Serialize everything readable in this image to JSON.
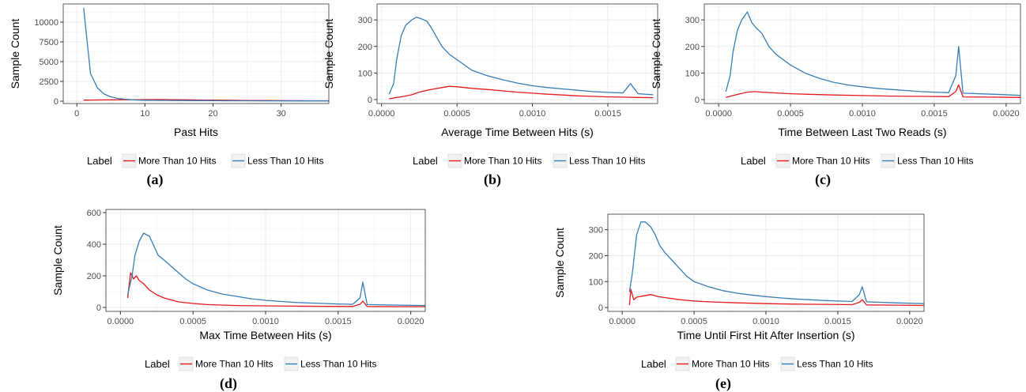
{
  "colors": {
    "red": "#e41a1c",
    "blue": "#377eb8",
    "grid": "#ebebeb",
    "panel_border": "#333333"
  },
  "legend": {
    "title": "Label",
    "items": [
      "More Than 10 Hits",
      "Less Than 10 Hits"
    ]
  },
  "chart_data": [
    {
      "type": "line",
      "caption": "(a)",
      "xlabel": "Past Hits",
      "ylabel": "Sample Count",
      "xlim": [
        -2,
        37
      ],
      "ylim": [
        -300,
        12300
      ],
      "xticks": [
        0,
        10,
        20,
        30
      ],
      "xtick_labels": [
        "0",
        "10",
        "20",
        "30"
      ],
      "yticks": [
        0,
        2500,
        5000,
        7500,
        10000
      ],
      "ytick_labels": [
        "0",
        "2500",
        "5000",
        "7500",
        "10000"
      ],
      "series": [
        {
          "name": "More Than 10 Hits",
          "x": [
            1,
            2,
            3,
            4,
            5,
            6,
            7,
            8,
            9,
            10,
            11,
            12,
            13,
            14,
            15,
            16,
            17,
            18,
            19,
            20,
            22,
            24,
            26,
            28,
            30,
            32,
            34,
            37
          ],
          "y": [
            130,
            140,
            150,
            160,
            170,
            175,
            180,
            185,
            190,
            195,
            200,
            210,
            200,
            190,
            180,
            170,
            160,
            150,
            140,
            130,
            115,
            100,
            90,
            80,
            70,
            60,
            50,
            45
          ]
        },
        {
          "name": "Less Than 10 Hits",
          "x": [
            1,
            2,
            3,
            4,
            5,
            6,
            7,
            8,
            9,
            10,
            11,
            12,
            13,
            14,
            15,
            16,
            17,
            18,
            19,
            20,
            22,
            24,
            26,
            28,
            30,
            32,
            34,
            37
          ],
          "y": [
            11800,
            3500,
            1700,
            900,
            550,
            350,
            250,
            180,
            140,
            120,
            110,
            100,
            95,
            90,
            85,
            80,
            75,
            70,
            65,
            60,
            55,
            50,
            45,
            40,
            38,
            35,
            32,
            30
          ]
        }
      ]
    },
    {
      "type": "line",
      "caption": "(b)",
      "xlabel": "Average Time Between Hits (s)",
      "ylabel": "Sample Count",
      "xlim": [
        -3e-05,
        0.00183
      ],
      "ylim": [
        -15,
        360
      ],
      "xticks": [
        0,
        0.0005,
        0.001,
        0.0015
      ],
      "xtick_labels": [
        "0.0000",
        "0.0005",
        "0.0010",
        "0.0015"
      ],
      "yticks": [
        0,
        100,
        200,
        300
      ],
      "ytick_labels": [
        "0",
        "100",
        "200",
        "300"
      ],
      "series": [
        {
          "name": "More Than 10 Hits",
          "x": [
            5e-05,
            0.0001,
            0.00015,
            0.0002,
            0.00025,
            0.0003,
            0.00035,
            0.0004,
            0.00045,
            0.0005,
            0.00055,
            0.0006,
            0.0007,
            0.0008,
            0.0009,
            0.001,
            0.0011,
            0.0012,
            0.0013,
            0.0014,
            0.0015,
            0.0016,
            0.0017,
            0.0018
          ],
          "y": [
            3,
            8,
            12,
            18,
            28,
            35,
            40,
            45,
            50,
            48,
            45,
            42,
            38,
            33,
            28,
            24,
            20,
            17,
            14,
            12,
            10,
            9,
            8,
            7
          ]
        },
        {
          "name": "Less Than 10 Hits",
          "x": [
            5e-05,
            8e-05,
            0.0001,
            0.00013,
            0.00016,
            0.0002,
            0.00023,
            0.00026,
            0.0003,
            0.00033,
            0.00036,
            0.0004,
            0.00045,
            0.0005,
            0.00055,
            0.0006,
            0.0007,
            0.0008,
            0.0009,
            0.001,
            0.0011,
            0.0012,
            0.0013,
            0.0014,
            0.0015,
            0.0016,
            0.00165,
            0.0017,
            0.0018
          ],
          "y": [
            20,
            60,
            150,
            240,
            280,
            300,
            310,
            305,
            295,
            270,
            240,
            200,
            170,
            150,
            130,
            110,
            90,
            75,
            62,
            52,
            45,
            40,
            35,
            30,
            27,
            25,
            60,
            22,
            18
          ]
        }
      ]
    },
    {
      "type": "line",
      "caption": "(c)",
      "xlabel": "Time Between Last Two Reads (s)",
      "ylabel": "Sample Count",
      "xlim": [
        -0.0001,
        0.0021
      ],
      "ylim": [
        -15,
        360
      ],
      "xticks": [
        0,
        0.0005,
        0.001,
        0.0015,
        0.002
      ],
      "xtick_labels": [
        "0.0000",
        "0.0005",
        "0.0010",
        "0.0015",
        "0.0020"
      ],
      "yticks": [
        0,
        100,
        200,
        300
      ],
      "ytick_labels": [
        "0",
        "100",
        "200",
        "300"
      ],
      "series": [
        {
          "name": "More Than 10 Hits",
          "x": [
            5e-05,
            0.0001,
            0.00015,
            0.0002,
            0.00025,
            0.0003,
            0.0004,
            0.0005,
            0.0006,
            0.0008,
            0.001,
            0.0012,
            0.0014,
            0.0016,
            0.00165,
            0.00167,
            0.0017,
            0.0019,
            0.0021
          ],
          "y": [
            8,
            15,
            22,
            28,
            30,
            28,
            25,
            22,
            20,
            17,
            15,
            13,
            12,
            11,
            30,
            55,
            10,
            9,
            8
          ]
        },
        {
          "name": "Less Than 10 Hits",
          "x": [
            5e-05,
            8e-05,
            0.0001,
            0.00013,
            0.00016,
            0.0002,
            0.00023,
            0.00026,
            0.0003,
            0.00035,
            0.0004,
            0.00045,
            0.0005,
            0.0006,
            0.0007,
            0.0008,
            0.0009,
            0.001,
            0.0011,
            0.0012,
            0.0013,
            0.0014,
            0.0015,
            0.0016,
            0.00165,
            0.00167,
            0.0017,
            0.0019,
            0.0021
          ],
          "y": [
            30,
            90,
            180,
            260,
            300,
            330,
            290,
            270,
            250,
            200,
            170,
            150,
            130,
            100,
            80,
            65,
            55,
            48,
            42,
            38,
            34,
            30,
            28,
            26,
            90,
            200,
            24,
            20,
            16
          ]
        }
      ]
    },
    {
      "type": "line",
      "caption": "(d)",
      "xlabel": "Max Time Between Hits (s)",
      "ylabel": "Sample Count",
      "xlim": [
        -0.0001,
        0.0021
      ],
      "ylim": [
        -25,
        620
      ],
      "xticks": [
        0,
        0.0005,
        0.001,
        0.0015,
        0.002
      ],
      "xtick_labels": [
        "0.0000",
        "0.0005",
        "0.0010",
        "0.0015",
        "0.0020"
      ],
      "yticks": [
        0,
        200,
        400,
        600
      ],
      "ytick_labels": [
        "0",
        "200",
        "400",
        "600"
      ],
      "series": [
        {
          "name": "More Than 10 Hits",
          "x": [
            5e-05,
            7e-05,
            9e-05,
            0.00011,
            0.00013,
            0.00016,
            0.0002,
            0.00025,
            0.0003,
            0.0004,
            0.0005,
            0.0006,
            0.0008,
            0.001,
            0.0012,
            0.0014,
            0.0016,
            0.00165,
            0.00167,
            0.0017,
            0.0019,
            0.0021
          ],
          "y": [
            60,
            220,
            180,
            200,
            170,
            150,
            110,
            80,
            60,
            35,
            25,
            18,
            12,
            10,
            8,
            7,
            6,
            20,
            40,
            6,
            5,
            5
          ]
        },
        {
          "name": "Less Than 10 Hits",
          "x": [
            5e-05,
            8e-05,
            0.0001,
            0.00013,
            0.00016,
            0.0002,
            0.00023,
            0.00026,
            0.0003,
            0.00035,
            0.0004,
            0.00045,
            0.0005,
            0.0006,
            0.0007,
            0.0008,
            0.0009,
            0.001,
            0.0011,
            0.0012,
            0.0013,
            0.0014,
            0.0015,
            0.0016,
            0.00165,
            0.00167,
            0.0017,
            0.0019,
            0.0021
          ],
          "y": [
            80,
            200,
            330,
            420,
            470,
            450,
            390,
            330,
            300,
            260,
            220,
            180,
            150,
            110,
            85,
            70,
            55,
            45,
            38,
            32,
            28,
            25,
            22,
            20,
            60,
            160,
            18,
            15,
            12
          ]
        }
      ]
    },
    {
      "type": "line",
      "caption": "(e)",
      "xlabel": "Time Until First Hit After Insertion (s)",
      "ylabel": "Sample Count",
      "xlim": [
        -0.0001,
        0.0021
      ],
      "ylim": [
        -15,
        360
      ],
      "xticks": [
        0,
        0.0005,
        0.001,
        0.0015,
        0.002
      ],
      "xtick_labels": [
        "0.0000",
        "0.0005",
        "0.0010",
        "0.0015",
        "0.0020"
      ],
      "yticks": [
        0,
        100,
        200,
        300
      ],
      "ytick_labels": [
        "0",
        "100",
        "200",
        "300"
      ],
      "series": [
        {
          "name": "More Than 10 Hits",
          "x": [
            5e-05,
            6e-05,
            8e-05,
            0.0001,
            0.00015,
            0.0002,
            0.00025,
            0.0003,
            0.0004,
            0.0005,
            0.0006,
            0.0008,
            0.001,
            0.0012,
            0.0014,
            0.0016,
            0.00165,
            0.00167,
            0.0017,
            0.0019,
            0.0021
          ],
          "y": [
            10,
            70,
            30,
            40,
            45,
            50,
            42,
            38,
            30,
            25,
            22,
            18,
            15,
            13,
            12,
            11,
            20,
            30,
            10,
            9,
            8
          ]
        },
        {
          "name": "Less Than 10 Hits",
          "x": [
            5e-05,
            7e-05,
            0.0001,
            0.00013,
            0.00016,
            0.0002,
            0.00023,
            0.00026,
            0.0003,
            0.00035,
            0.0004,
            0.00045,
            0.0005,
            0.0006,
            0.0007,
            0.0008,
            0.0009,
            0.001,
            0.0011,
            0.0012,
            0.0013,
            0.0014,
            0.0015,
            0.0016,
            0.00165,
            0.00167,
            0.0017,
            0.0019,
            0.0021
          ],
          "y": [
            60,
            130,
            280,
            330,
            330,
            310,
            280,
            240,
            210,
            180,
            150,
            120,
            100,
            80,
            65,
            55,
            48,
            42,
            37,
            33,
            30,
            27,
            25,
            23,
            50,
            80,
            22,
            18,
            15
          ]
        }
      ]
    }
  ]
}
